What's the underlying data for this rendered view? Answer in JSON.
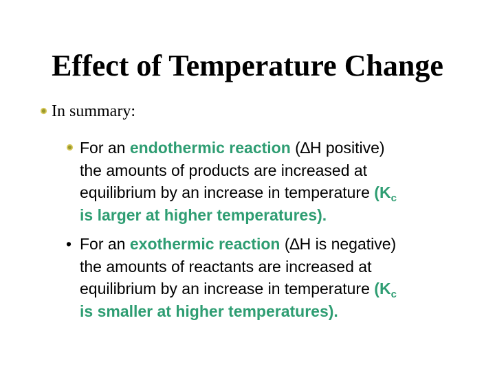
{
  "slide": {
    "title": "Effect of Temperature Change",
    "summary_label": "In summary:",
    "colors": {
      "highlight": "#2e9d72",
      "bullet_olive": "#9a9a2e",
      "bullet_gold": "#d8c85a"
    },
    "item1": {
      "marker_icon": "diamond-bullet-icon",
      "line1_pre": "For an ",
      "line1_hl": "endothermic reaction",
      "line1_post": " (∆H positive)",
      "line2": "the amounts of products are increased at",
      "line3_pre": "equilibrium by an increase in temperature ",
      "line3_hl": "(K",
      "line3_sub": "c",
      "line4_hl": "is larger at higher temperatures)."
    },
    "item2": {
      "marker": "•",
      "line1_pre": "For an ",
      "line1_hl": "exothermic reaction",
      "line1_post": " (∆H is negative)",
      "line2": "the amounts of reactants are increased at",
      "line3_pre": "equilibrium by an increase in temperature ",
      "line3_hl": "(K",
      "line3_sub": "c",
      "line4_hl": "is smaller at higher temperatures)."
    }
  }
}
